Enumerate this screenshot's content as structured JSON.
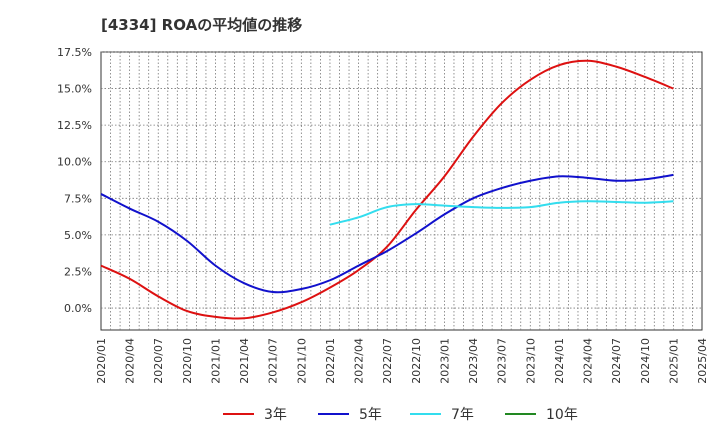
{
  "chart_data": {
    "type": "line",
    "title": "[4334]  ROAの平均値の推移",
    "xlabel": "",
    "ylabel": "",
    "ylim": [
      -1.5,
      17.5
    ],
    "yticks": [
      0,
      2.5,
      5,
      7.5,
      10,
      12.5,
      15,
      17.5
    ],
    "ytick_labels": [
      "0.0%",
      "2.5%",
      "5.0%",
      "7.5%",
      "10.0%",
      "12.5%",
      "15.0%",
      "17.5%"
    ],
    "xticks": [
      "2020/01",
      "2020/04",
      "2020/07",
      "2020/10",
      "2021/01",
      "2021/04",
      "2021/07",
      "2021/10",
      "2022/01",
      "2022/04",
      "2022/07",
      "2022/10",
      "2023/01",
      "2023/04",
      "2023/07",
      "2023/10",
      "2024/01",
      "2024/04",
      "2024/07",
      "2024/10",
      "2025/01",
      "2025/04"
    ],
    "grid": true,
    "legend_position": "bottom",
    "series": [
      {
        "name": "3年",
        "color": "#dd1111",
        "points": [
          [
            "2020/01",
            2.9
          ],
          [
            "2020/04",
            2.0
          ],
          [
            "2020/07",
            0.8
          ],
          [
            "2020/10",
            -0.2
          ],
          [
            "2021/01",
            -0.6
          ],
          [
            "2021/04",
            -0.7
          ],
          [
            "2021/07",
            -0.3
          ],
          [
            "2021/10",
            0.4
          ],
          [
            "2022/01",
            1.4
          ],
          [
            "2022/04",
            2.6
          ],
          [
            "2022/07",
            4.2
          ],
          [
            "2022/10",
            6.7
          ],
          [
            "2023/01",
            9.0
          ],
          [
            "2023/04",
            11.7
          ],
          [
            "2023/07",
            14.0
          ],
          [
            "2023/10",
            15.6
          ],
          [
            "2024/01",
            16.6
          ],
          [
            "2024/04",
            16.9
          ],
          [
            "2024/07",
            16.5
          ],
          [
            "2024/10",
            15.8
          ],
          [
            "2025/01",
            15.0
          ]
        ]
      },
      {
        "name": "5年",
        "color": "#1111cc",
        "points": [
          [
            "2020/01",
            7.8
          ],
          [
            "2020/04",
            6.8
          ],
          [
            "2020/07",
            5.9
          ],
          [
            "2020/10",
            4.6
          ],
          [
            "2021/01",
            2.9
          ],
          [
            "2021/04",
            1.7
          ],
          [
            "2021/07",
            1.1
          ],
          [
            "2021/10",
            1.3
          ],
          [
            "2022/01",
            1.9
          ],
          [
            "2022/04",
            2.9
          ],
          [
            "2022/07",
            3.9
          ],
          [
            "2022/10",
            5.1
          ],
          [
            "2023/01",
            6.4
          ],
          [
            "2023/04",
            7.5
          ],
          [
            "2023/07",
            8.2
          ],
          [
            "2023/10",
            8.7
          ],
          [
            "2024/01",
            9.0
          ],
          [
            "2024/04",
            8.9
          ],
          [
            "2024/07",
            8.7
          ],
          [
            "2024/10",
            8.8
          ],
          [
            "2025/01",
            9.1
          ]
        ]
      },
      {
        "name": "7年",
        "color": "#33ddee",
        "points": [
          [
            "2022/01",
            5.7
          ],
          [
            "2022/04",
            6.2
          ],
          [
            "2022/07",
            6.9
          ],
          [
            "2022/10",
            7.1
          ],
          [
            "2023/01",
            7.0
          ],
          [
            "2023/04",
            6.9
          ],
          [
            "2023/07",
            6.85
          ],
          [
            "2023/10",
            6.9
          ],
          [
            "2024/01",
            7.2
          ],
          [
            "2024/04",
            7.3
          ],
          [
            "2024/07",
            7.25
          ],
          [
            "2024/10",
            7.2
          ],
          [
            "2025/01",
            7.3
          ]
        ]
      },
      {
        "name": "10年",
        "color": "#228822",
        "points": []
      }
    ]
  }
}
